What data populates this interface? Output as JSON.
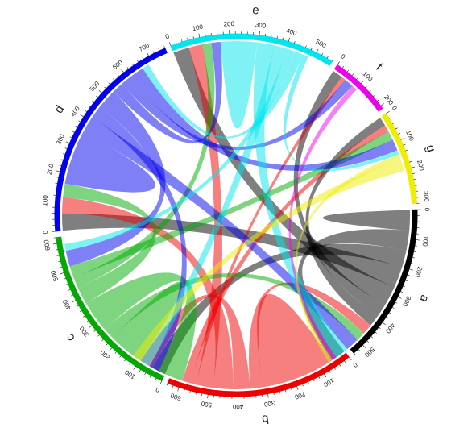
{
  "chart_data": {
    "type": "chord",
    "title": "",
    "sectors": [
      {
        "name": "a",
        "color": "#000000",
        "ticks": [
          "0",
          "100",
          "200",
          "300",
          "400",
          "500"
        ],
        "max": 540
      },
      {
        "name": "b",
        "color": "#ee0000",
        "ticks": [
          "0",
          "100",
          "200",
          "300",
          "400",
          "500",
          "600"
        ],
        "max": 640
      },
      {
        "name": "c",
        "color": "#00aa00",
        "ticks": [
          "0",
          "100",
          "200",
          "300",
          "400",
          "500",
          "600"
        ],
        "max": 620
      },
      {
        "name": "d",
        "color": "#0000ee",
        "ticks": [
          "0",
          "100",
          "200",
          "300",
          "400",
          "500",
          "600",
          "700"
        ],
        "max": 760
      },
      {
        "name": "e",
        "color": "#00e5ee",
        "ticks": [
          "0",
          "100",
          "200",
          "300",
          "400",
          "500"
        ],
        "max": 560
      },
      {
        "name": "f",
        "color": "#ee00ee",
        "ticks": [
          "0",
          "100",
          "200"
        ],
        "max": 210
      },
      {
        "name": "g",
        "color": "#eeee00",
        "ticks": [
          "0",
          "100",
          "200",
          "300"
        ],
        "max": 320
      }
    ],
    "links": [
      {
        "from": "a",
        "to": "a",
        "value": 45
      },
      {
        "from": "a",
        "to": "b",
        "value": 70
      },
      {
        "from": "a",
        "to": "c",
        "value": 60
      },
      {
        "from": "a",
        "to": "d",
        "value": 75
      },
      {
        "from": "a",
        "to": "e",
        "value": 70
      },
      {
        "from": "a",
        "to": "f",
        "value": 45
      },
      {
        "from": "a",
        "to": "g",
        "value": 40
      },
      {
        "from": "b",
        "to": "b",
        "value": 160
      },
      {
        "from": "b",
        "to": "a",
        "value": 45
      },
      {
        "from": "b",
        "to": "c",
        "value": 60
      },
      {
        "from": "b",
        "to": "d",
        "value": 70
      },
      {
        "from": "b",
        "to": "e",
        "value": 60
      },
      {
        "from": "b",
        "to": "f",
        "value": 20
      },
      {
        "from": "b",
        "to": "g",
        "value": 30
      },
      {
        "from": "c",
        "to": "c",
        "value": 80
      },
      {
        "from": "c",
        "to": "a",
        "value": 40
      },
      {
        "from": "c",
        "to": "b",
        "value": 110
      },
      {
        "from": "c",
        "to": "d",
        "value": 60
      },
      {
        "from": "c",
        "to": "e",
        "value": 40
      },
      {
        "from": "c",
        "to": "g",
        "value": 40
      },
      {
        "from": "d",
        "to": "d",
        "value": 120
      },
      {
        "from": "d",
        "to": "a",
        "value": 60
      },
      {
        "from": "d",
        "to": "b",
        "value": 45
      },
      {
        "from": "d",
        "to": "c",
        "value": 70
      },
      {
        "from": "d",
        "to": "e",
        "value": 40
      },
      {
        "from": "d",
        "to": "f",
        "value": 40
      },
      {
        "from": "d",
        "to": "g",
        "value": 50
      },
      {
        "from": "e",
        "to": "e",
        "value": 80
      },
      {
        "from": "e",
        "to": "a",
        "value": 60
      },
      {
        "from": "e",
        "to": "b",
        "value": 45
      },
      {
        "from": "e",
        "to": "c",
        "value": 30
      },
      {
        "from": "e",
        "to": "d",
        "value": 30
      },
      {
        "from": "e",
        "to": "g",
        "value": 20
      },
      {
        "from": "f",
        "to": "a",
        "value": 20
      },
      {
        "from": "g",
        "to": "a",
        "value": 20
      },
      {
        "from": "g",
        "to": "b",
        "value": 40
      }
    ]
  }
}
